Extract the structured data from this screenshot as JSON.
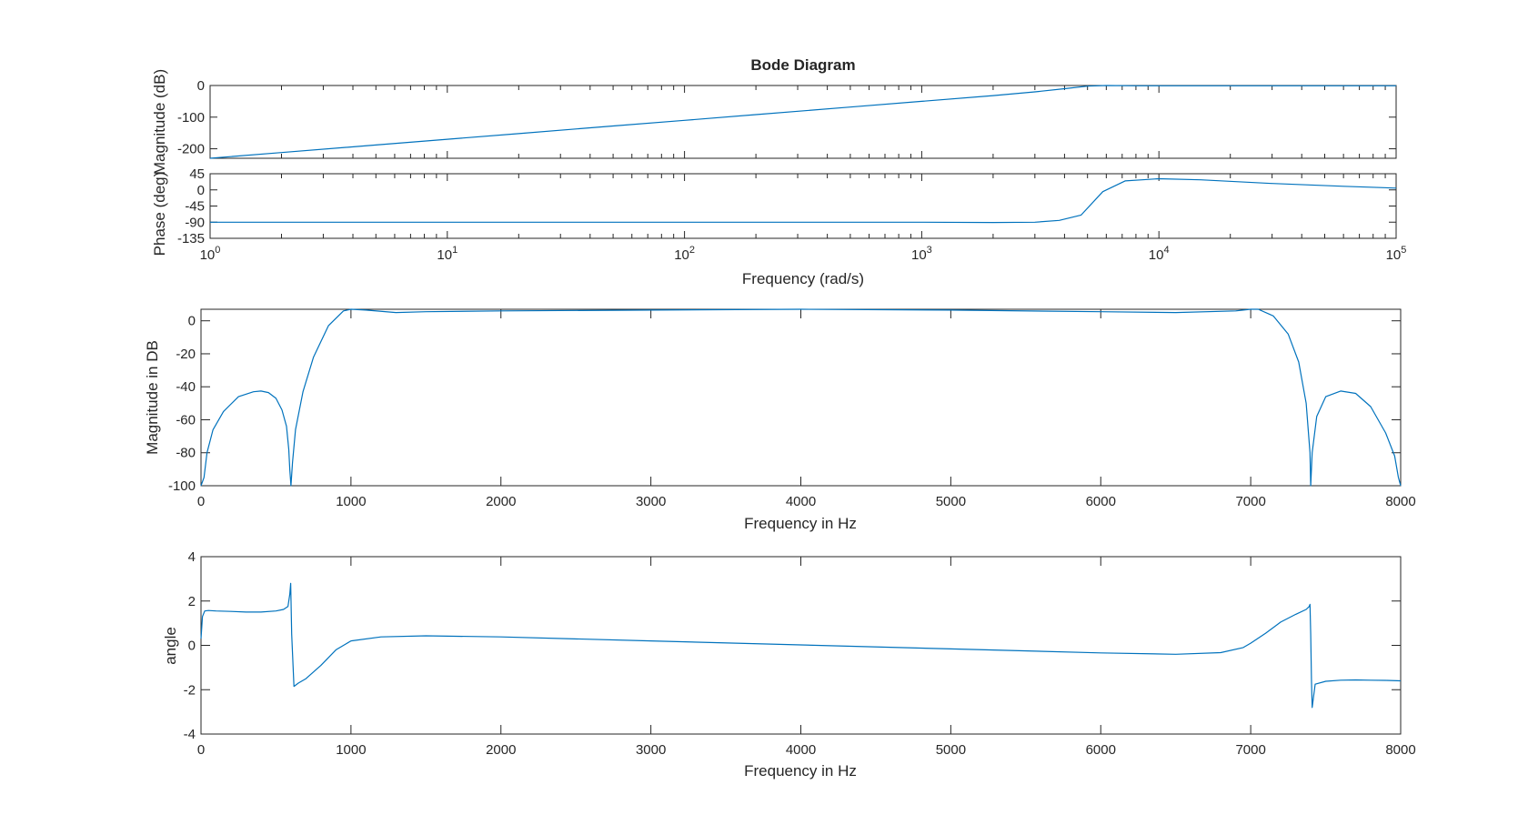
{
  "chart_data": [
    {
      "type": "line",
      "title": "Bode Diagram",
      "xlabel": "Frequency  (rad/s)",
      "ylabel": "Magnitude (dB)",
      "xscale": "log",
      "xlim": [
        1,
        100000
      ],
      "ylim": [
        -230,
        0
      ],
      "yticks": [
        0,
        -100,
        -200
      ],
      "xticks": [
        1,
        10,
        100,
        1000,
        10000,
        100000
      ],
      "xtick_labels": [
        {
          "base": "10",
          "exp": "0"
        },
        {
          "base": "10",
          "exp": "1"
        },
        {
          "base": "10",
          "exp": "2"
        },
        {
          "base": "10",
          "exp": "3"
        },
        {
          "base": "10",
          "exp": "4"
        },
        {
          "base": "10",
          "exp": "5"
        }
      ],
      "grid": false,
      "series": [
        {
          "color": "#0072bd",
          "x": [
            1,
            2,
            5,
            10,
            20,
            50,
            100,
            200,
            500,
            1000,
            2000,
            3000,
            4000,
            5000,
            6000,
            8000,
            10000,
            20000,
            50000,
            100000
          ],
          "y": [
            -230,
            -212,
            -188,
            -170,
            -152,
            -128,
            -110,
            -92,
            -68,
            -50,
            -32,
            -20,
            -10,
            -2,
            0,
            -1,
            -1,
            -1,
            -1,
            -1
          ]
        }
      ]
    },
    {
      "type": "line",
      "xlabel": "Frequency  (rad/s)",
      "ylabel": "Phase (deg)",
      "xscale": "log",
      "xlim": [
        1,
        100000
      ],
      "ylim": [
        -135,
        45
      ],
      "yticks": [
        45,
        0,
        -45,
        -90,
        -135
      ],
      "grid": false,
      "series": [
        {
          "color": "#0072bd",
          "x": [
            1,
            10,
            100,
            1000,
            2000,
            3000,
            3800,
            4700,
            5800,
            7200,
            8500,
            10000,
            15000,
            30000,
            60000,
            100000
          ],
          "y": [
            -90,
            -90,
            -90,
            -90,
            -91,
            -90,
            -85,
            -70,
            -5,
            25,
            28,
            31,
            28,
            18,
            10,
            5
          ]
        }
      ]
    },
    {
      "type": "line",
      "xlabel": "Frequency in Hz",
      "ylabel": "Magnitude in DB",
      "xlim": [
        0,
        8000
      ],
      "ylim": [
        -100,
        7
      ],
      "xticks": [
        0,
        1000,
        2000,
        3000,
        4000,
        5000,
        6000,
        7000,
        8000
      ],
      "yticks": [
        0,
        -20,
        -40,
        -60,
        -80,
        -100
      ],
      "grid": false,
      "series": [
        {
          "color": "#0072bd",
          "x": [
            0,
            20,
            40,
            80,
            150,
            250,
            350,
            400,
            450,
            500,
            540,
            570,
            585,
            592,
            600,
            610,
            630,
            680,
            750,
            850,
            950,
            1000,
            1100,
            1300,
            1500,
            2000,
            3000,
            4000,
            5000,
            6000,
            6500,
            6900,
            7000,
            7050,
            7150,
            7250,
            7320,
            7370,
            7395,
            7400,
            7410,
            7440,
            7500,
            7600,
            7700,
            7800,
            7900,
            7960,
            7985,
            8000
          ],
          "y": [
            -100,
            -95,
            -80,
            -66,
            -55,
            -46,
            -43,
            -42.6,
            -43.5,
            -47,
            -54,
            -64,
            -78,
            -90,
            -100,
            -86,
            -66,
            -43,
            -22,
            -3,
            6,
            7,
            6.5,
            5,
            5.5,
            6,
            6.5,
            7,
            6.5,
            5.5,
            5,
            6,
            7,
            7,
            3,
            -8,
            -25,
            -50,
            -80,
            -100,
            -80,
            -58,
            -46,
            -42.6,
            -44,
            -52,
            -68,
            -82,
            -95,
            -100
          ]
        }
      ]
    },
    {
      "type": "line",
      "xlabel": "Frequency in Hz",
      "ylabel": "angle",
      "xlim": [
        0,
        8000
      ],
      "ylim": [
        -4,
        4
      ],
      "xticks": [
        0,
        1000,
        2000,
        3000,
        4000,
        5000,
        6000,
        7000,
        8000
      ],
      "yticks": [
        4,
        2,
        0,
        -2,
        -4
      ],
      "grid": false,
      "series": [
        {
          "color": "#0072bd",
          "x": [
            0,
            10,
            25,
            50,
            100,
            200,
            300,
            400,
            500,
            550,
            580,
            592,
            598,
            605,
            620,
            650,
            700,
            800,
            900,
            1000,
            1200,
            1500,
            2000,
            3000,
            4000,
            5000,
            6000,
            6500,
            6800,
            6950,
            7000,
            7100,
            7200,
            7300,
            7370,
            7390,
            7395,
            7400,
            7405,
            7410,
            7430,
            7500,
            7600,
            7700,
            7800,
            7900,
            8000
          ],
          "y": [
            0.3,
            1.3,
            1.55,
            1.57,
            1.55,
            1.53,
            1.5,
            1.5,
            1.55,
            1.62,
            1.75,
            2.3,
            2.8,
            0.5,
            -1.85,
            -1.7,
            -1.5,
            -0.9,
            -0.2,
            0.2,
            0.38,
            0.43,
            0.38,
            0.2,
            0.02,
            -0.16,
            -0.34,
            -0.4,
            -0.33,
            -0.1,
            0.1,
            0.55,
            1.05,
            1.4,
            1.62,
            1.75,
            1.85,
            0.5,
            -1.5,
            -2.8,
            -1.75,
            -1.62,
            -1.57,
            -1.56,
            -1.57,
            -1.58,
            -1.6
          ]
        }
      ]
    }
  ]
}
